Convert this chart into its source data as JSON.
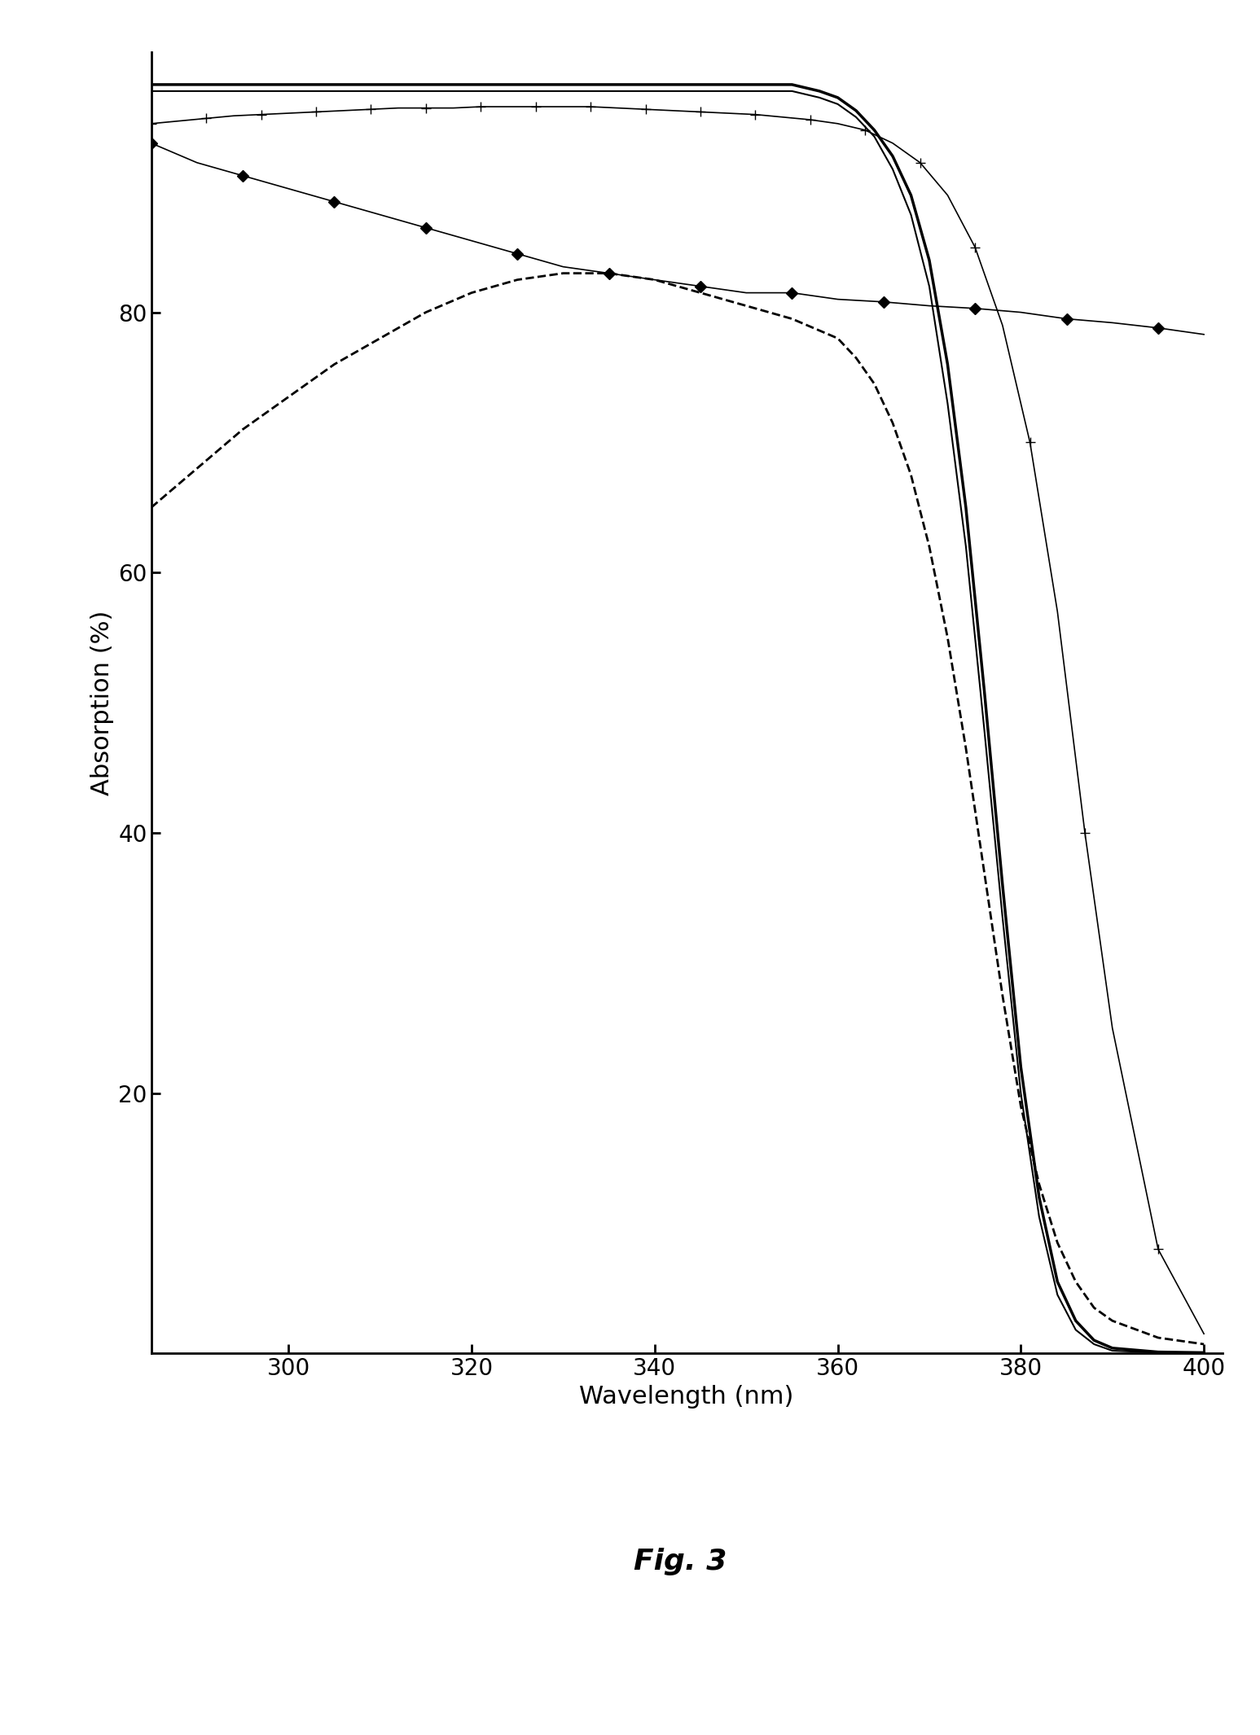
{
  "title": "Fig. 3",
  "xlabel": "Wavelength (nm)",
  "ylabel": "Absorption (%)",
  "xlim": [
    285,
    402
  ],
  "ylim": [
    0,
    100
  ],
  "yticks": [
    20,
    40,
    60,
    80
  ],
  "xticks": [
    300,
    320,
    340,
    360,
    380,
    400
  ],
  "background_color": "#ffffff",
  "line_color": "#000000",
  "curve1_x": [
    285,
    290,
    295,
    300,
    305,
    310,
    315,
    320,
    325,
    330,
    335,
    340,
    345,
    350,
    355,
    358,
    360,
    362,
    364,
    366,
    368,
    370,
    372,
    374,
    376,
    378,
    380,
    382,
    384,
    386,
    388,
    390,
    395,
    400
  ],
  "curve1_y": [
    97.5,
    97.5,
    97.5,
    97.5,
    97.5,
    97.5,
    97.5,
    97.5,
    97.5,
    97.5,
    97.5,
    97.5,
    97.5,
    97.5,
    97.5,
    97.0,
    96.5,
    95.5,
    94.0,
    92.0,
    89.0,
    84.0,
    76.0,
    65.0,
    51.0,
    36.0,
    22.0,
    12.0,
    5.5,
    2.5,
    1.0,
    0.4,
    0.1,
    0.05
  ],
  "curve1_style": "solid",
  "curve1_linewidth": 2.5,
  "curve2_x": [
    285,
    290,
    295,
    300,
    305,
    310,
    315,
    320,
    325,
    330,
    335,
    340,
    345,
    350,
    355,
    358,
    360,
    362,
    364,
    366,
    368,
    370,
    372,
    374,
    376,
    378,
    380,
    382,
    384,
    386,
    388,
    390,
    395,
    400
  ],
  "curve2_y": [
    97.0,
    97.0,
    97.0,
    97.0,
    97.0,
    97.0,
    97.0,
    97.0,
    97.0,
    97.0,
    97.0,
    97.0,
    97.0,
    97.0,
    97.0,
    96.5,
    96.0,
    95.0,
    93.5,
    91.0,
    87.5,
    82.0,
    73.0,
    62.0,
    48.0,
    33.5,
    20.0,
    10.5,
    4.5,
    1.8,
    0.7,
    0.2,
    0.05,
    0.02
  ],
  "curve2_style": "solid",
  "curve2_linewidth": 1.5,
  "curve3_x": [
    285,
    290,
    295,
    300,
    305,
    310,
    315,
    320,
    325,
    330,
    335,
    340,
    345,
    350,
    355,
    360,
    365,
    370,
    375,
    380,
    385,
    390,
    395,
    400
  ],
  "curve3_y": [
    93.0,
    91.5,
    90.5,
    89.5,
    88.5,
    87.5,
    86.5,
    85.5,
    84.5,
    83.5,
    83.0,
    82.5,
    82.0,
    81.5,
    81.5,
    81.0,
    80.8,
    80.5,
    80.3,
    80.0,
    79.5,
    79.2,
    78.8,
    78.3
  ],
  "curve3_style": "solid",
  "curve3_linewidth": 1.2,
  "curve3_marker": "D",
  "curve3_markersize": 7,
  "curve3_markevery": 2,
  "curve4_x": [
    285,
    288,
    291,
    294,
    297,
    300,
    303,
    306,
    309,
    312,
    315,
    318,
    321,
    324,
    327,
    330,
    333,
    336,
    339,
    342,
    345,
    348,
    351,
    354,
    357,
    360,
    363,
    366,
    369,
    372,
    375,
    378,
    381,
    384,
    387,
    390,
    395,
    400
  ],
  "curve4_y": [
    94.5,
    94.7,
    94.9,
    95.1,
    95.2,
    95.3,
    95.4,
    95.5,
    95.6,
    95.7,
    95.7,
    95.7,
    95.8,
    95.8,
    95.8,
    95.8,
    95.8,
    95.7,
    95.6,
    95.5,
    95.4,
    95.3,
    95.2,
    95.0,
    94.8,
    94.5,
    94.0,
    93.0,
    91.5,
    89.0,
    85.0,
    79.0,
    70.0,
    57.0,
    40.0,
    25.0,
    8.0,
    1.5
  ],
  "curve4_style": "solid",
  "curve4_linewidth": 1.2,
  "curve4_marker": "+",
  "curve4_markersize": 9,
  "curve4_markevery": 2,
  "curve5_x": [
    285,
    290,
    295,
    300,
    305,
    310,
    315,
    320,
    325,
    330,
    335,
    340,
    345,
    350,
    355,
    360,
    362,
    364,
    366,
    368,
    370,
    372,
    374,
    376,
    378,
    380,
    382,
    384,
    386,
    388,
    390,
    395,
    400
  ],
  "curve5_y": [
    65.0,
    68.0,
    71.0,
    73.5,
    76.0,
    78.0,
    80.0,
    81.5,
    82.5,
    83.0,
    83.0,
    82.5,
    81.5,
    80.5,
    79.5,
    78.0,
    76.5,
    74.5,
    71.5,
    67.5,
    62.0,
    55.0,
    46.5,
    37.0,
    27.5,
    19.0,
    13.0,
    8.5,
    5.5,
    3.5,
    2.5,
    1.2,
    0.7
  ],
  "curve5_style": "dashed",
  "curve5_linewidth": 2.0
}
